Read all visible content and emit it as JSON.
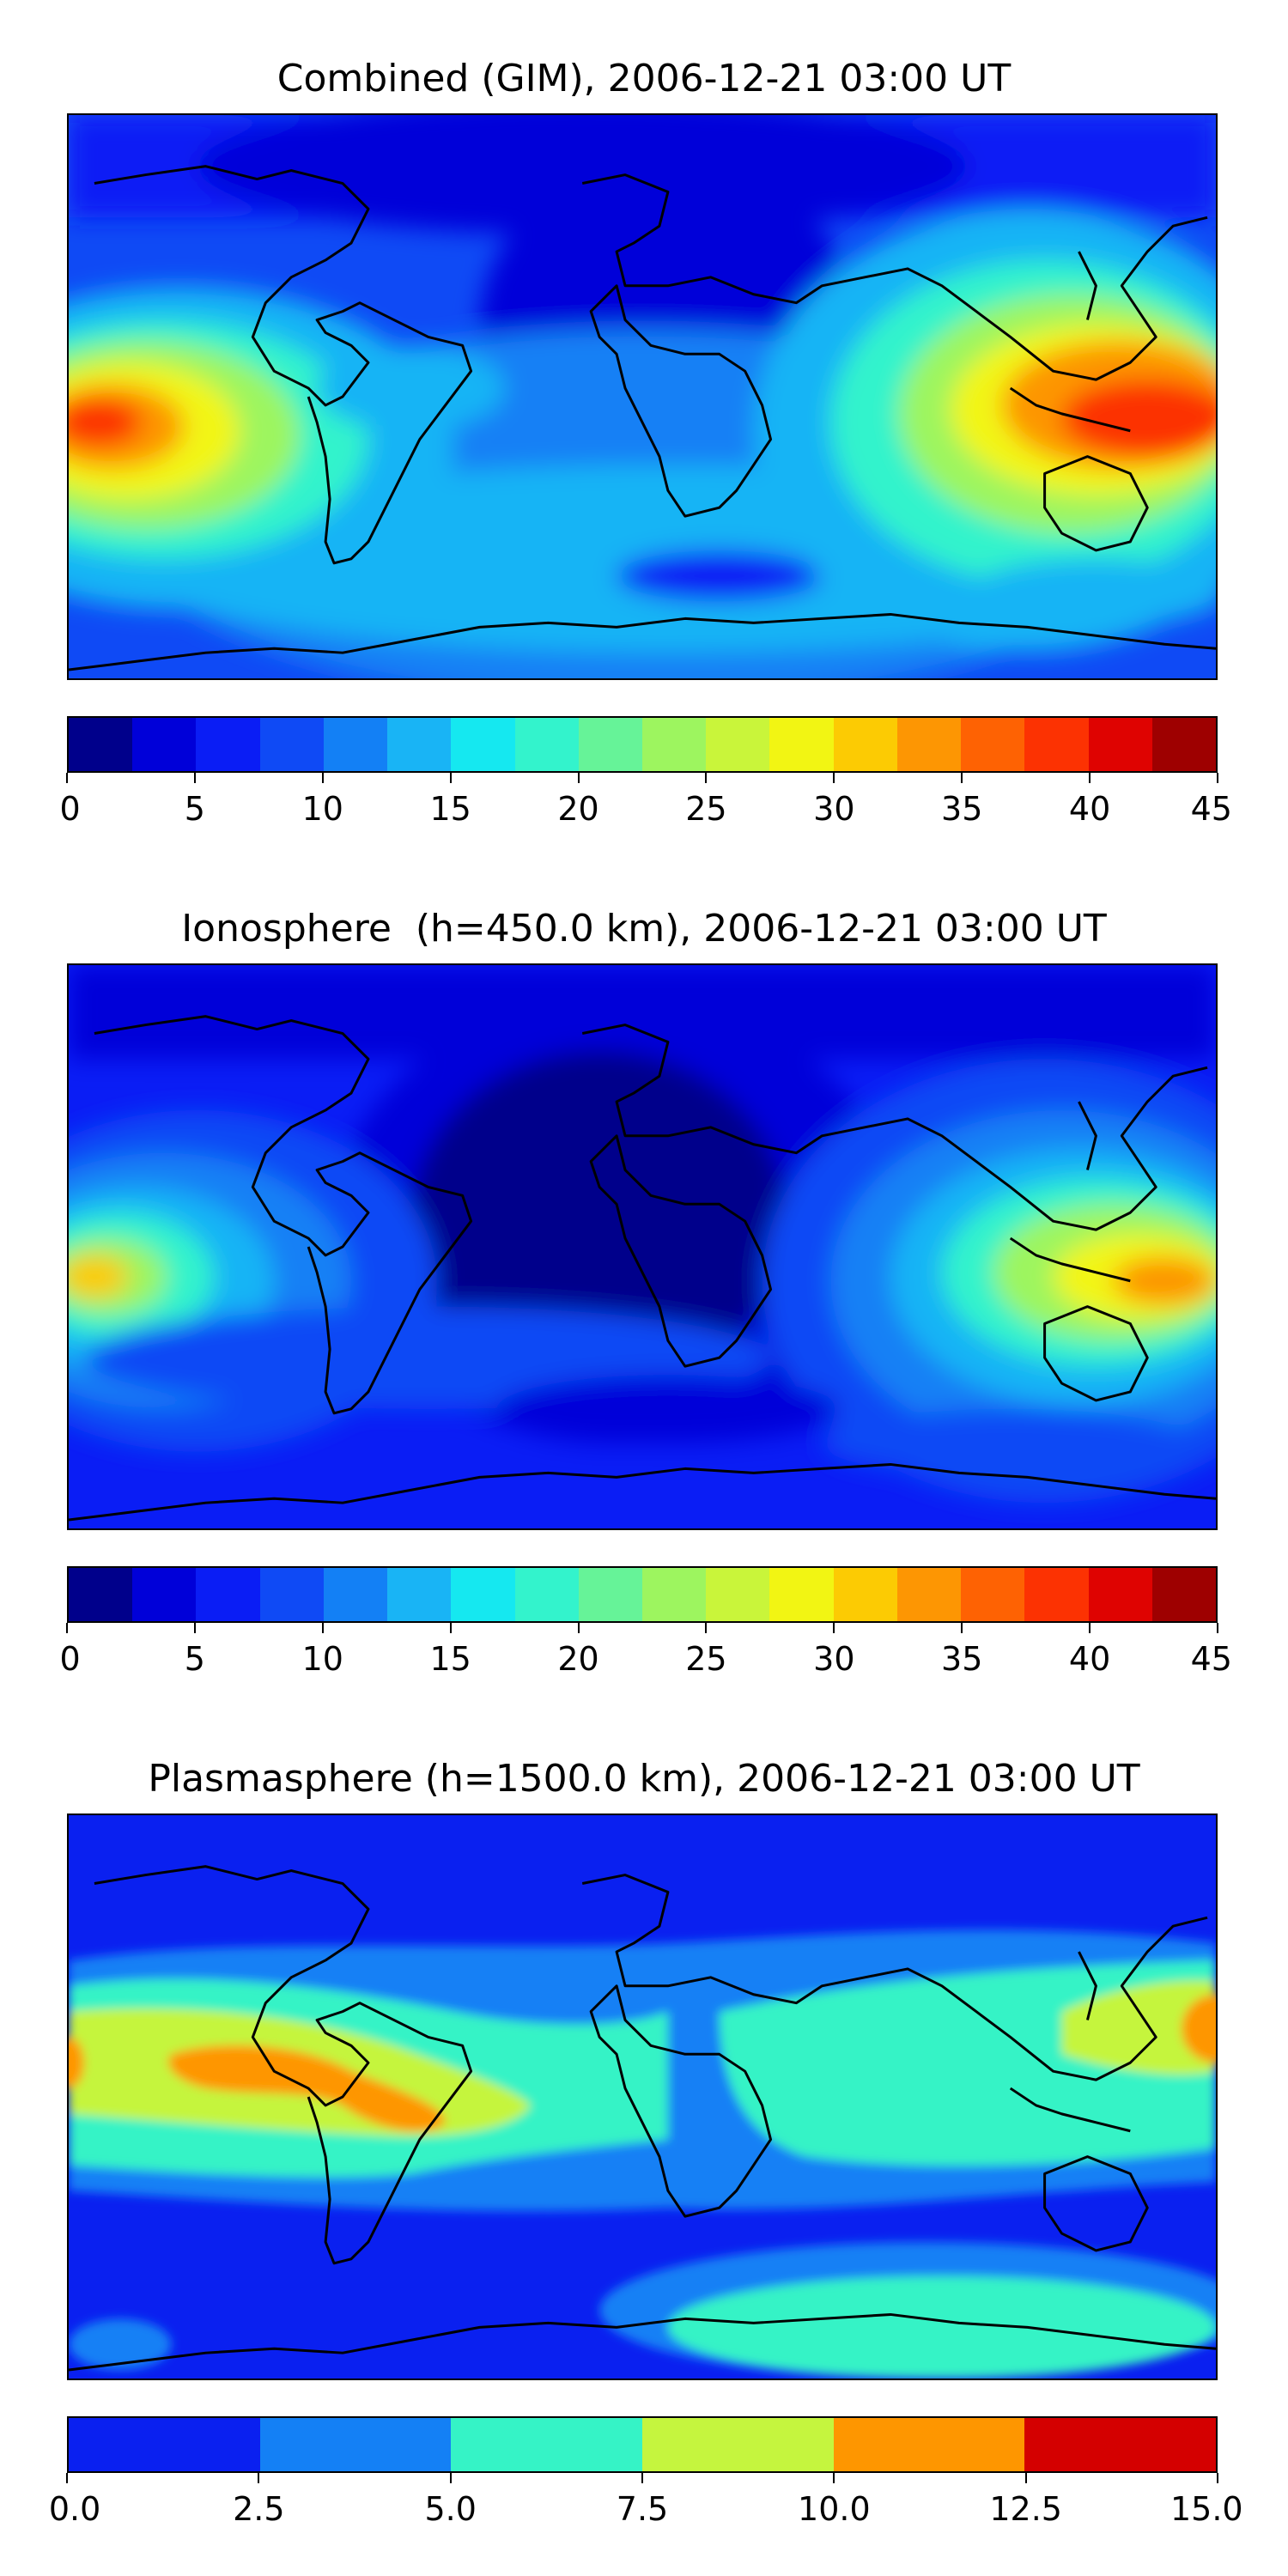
{
  "panels": [
    {
      "title": "Combined (GIM), 2006-12-21 03:00 UT",
      "colorbar": {
        "colors": [
          "#00008b",
          "#0000d9",
          "#0a1df5",
          "#0f4af5",
          "#1380f5",
          "#19b4f5",
          "#15e8f0",
          "#33f3cc",
          "#66f398",
          "#9df55f",
          "#c9f53a",
          "#f2f513",
          "#fccb03",
          "#fd9603",
          "#fe6203",
          "#fc3202",
          "#df0301",
          "#9e0000"
        ],
        "ticks": [
          "0",
          "5",
          "10",
          "15",
          "20",
          "25",
          "30",
          "35",
          "40",
          "45"
        ],
        "range": [
          0,
          45
        ]
      }
    },
    {
      "title": "Ionosphere  (h=450.0 km), 2006-12-21 03:00 UT",
      "colorbar": {
        "colors": [
          "#00008b",
          "#0000d9",
          "#0a1df5",
          "#0f4af5",
          "#1380f5",
          "#19b4f5",
          "#15e8f0",
          "#33f3cc",
          "#66f398",
          "#9df55f",
          "#c9f53a",
          "#f2f513",
          "#fccb03",
          "#fd9603",
          "#fe6203",
          "#fc3202",
          "#df0301",
          "#9e0000"
        ],
        "ticks": [
          "0",
          "5",
          "10",
          "15",
          "20",
          "25",
          "30",
          "35",
          "40",
          "45"
        ],
        "range": [
          0,
          45
        ]
      }
    },
    {
      "title": "Plasmasphere (h=1500.0 km), 2006-12-21 03:00 UT",
      "colorbar": {
        "colors": [
          "#0a20f0",
          "#1480f5",
          "#35f3c6",
          "#c5f53e",
          "#fe9600",
          "#d40000"
        ],
        "ticks": [
          "0.0",
          "2.5",
          "5.0",
          "7.5",
          "10.0",
          "12.5",
          "15.0"
        ],
        "range": [
          0,
          15
        ]
      }
    }
  ]
}
